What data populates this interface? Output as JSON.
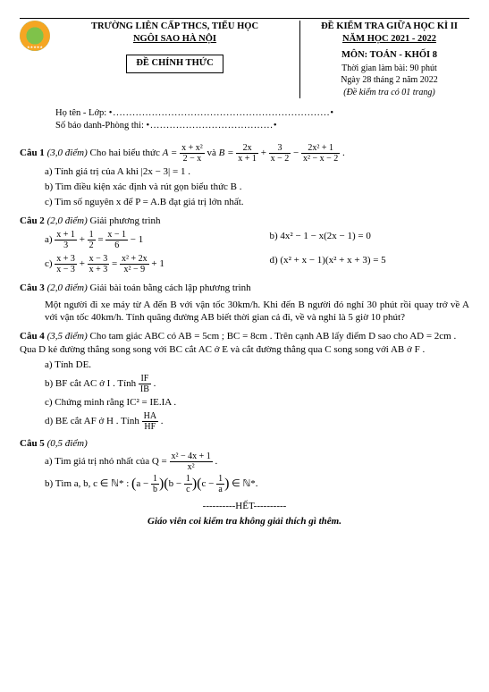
{
  "header": {
    "school_line1": "TRƯỜNG LIÊN CẤP THCS, TIỂU HỌC",
    "school_line2": "NGÔI SAO HÀ NỘI",
    "official": "ĐỀ CHÍNH THỨC",
    "exam_title": "ĐỀ KIỂM TRA GIỮA HỌC KÌ II",
    "year": "NĂM HỌC 2021 - 2022",
    "subject": "MÔN: TOÁN - KHỐI 8",
    "duration": "Thời gian làm bài: 90 phút",
    "date": "Ngày 28 tháng 2 năm 2022",
    "pages": "(Đề kiểm tra có 01 trang)"
  },
  "info": {
    "name_label": "Họ tên - Lớp:",
    "sbd_label": "Số báo danh-Phòng thi:"
  },
  "q1": {
    "head": "Câu 1",
    "pts": "(3,0 điểm)",
    "text_a": " Cho hai biểu thức ",
    "text_b": " và ",
    "A_lhs": "A =",
    "A_num": "x + x²",
    "A_den": "2 − x",
    "B_lhs": "B =",
    "B1_num": "2x",
    "B1_den": "x + 1",
    "B2_num": "3",
    "B2_den": "x − 2",
    "B3_num": "2x² + 1",
    "B3_den": "x² − x − 2",
    "plus": " + ",
    "minus": " − ",
    "period": " .",
    "a": "a) Tính giá trị của  A  khi |2x − 3| = 1 .",
    "b": "b) Tìm điều kiện xác định và rút gọn biểu thức  B .",
    "c": "c) Tìm số nguyên  x  để  P = A.B  đạt giá trị lớn nhất."
  },
  "q2": {
    "head": "Câu 2",
    "pts": "(2,0 điểm)",
    "text": " Giải phương trình",
    "a_lhs_f1_n": "x + 1",
    "a_lhs_f1_d": "3",
    "a_lhs_f2_n": "1",
    "a_lhs_f2_d": "2",
    "a_rhs_f_n": "x − 1",
    "a_rhs_f_d": "6",
    "a_tail": " − 1",
    "b": "b) 4x² − 1 − x(2x − 1) = 0",
    "c_f1_n": "x + 3",
    "c_f1_d": "x − 3",
    "c_f2_n": "x − 3",
    "c_f2_d": "x + 3",
    "c_f3_n": "x² + 2x",
    "c_f3_d": "x² − 9",
    "c_tail": " + 1",
    "d": "d) (x² + x − 1)(x² + x + 3) = 5"
  },
  "q3": {
    "head": "Câu 3",
    "pts": "(2,0 điểm)",
    "text": " Giải bài toán bằng cách lập phương trình",
    "para": "Một người đi xe máy từ A đến B với vận tốc 30km/h. Khi đến B người đó nghỉ 30 phút rồi quay trở về A với vận tốc 40km/h. Tính quãng đường AB biết thời gian cả đi, về và nghỉ là 5 giờ 10 phút?"
  },
  "q4": {
    "head": "Câu 4",
    "pts": "(3,5 điểm)",
    "text": " Cho tam giác  ABC  có  AB = 5cm ;  BC = 8cm . Trên cạnh  AB  lấy điểm D  sao cho AD = 2cm . Qua  D  kẻ đường thẳng song song với  BC  cắt  AC  ở  E  và cắt đường thẳng qua  C song song với  AB  ở  F .",
    "a": "a) Tính  DE.",
    "b_pre": "b)  BF  cắt  AC  ở  I . Tính ",
    "b_fn": "IF",
    "b_fd": "IB",
    "c": "c) Chứng minh rằng  IC² = IE.IA .",
    "d_pre": "d)  BE  cắt  AF  ở  H . Tính ",
    "d_fn": "HA",
    "d_fd": "HF"
  },
  "q5": {
    "head": "Câu 5",
    "pts": "(0,5 điểm)",
    "a_pre": "a) Tìm giá trị nhỏ nhất của Q = ",
    "a_fn": "x² − 4x + 1",
    "a_fd": "x²",
    "b": "b) Tìm  a, b, c ∈ ℕ* : ",
    "b_expr_open": "(",
    "b_expr_close": ")",
    "b_p1_a": "a − ",
    "b_p1_fn": "1",
    "b_p1_fd": "b",
    "b_p2_a": "b − ",
    "b_p2_fn": "1",
    "b_p2_fd": "c",
    "b_p3_a": "c − ",
    "b_p3_fn": "1",
    "b_p3_fd": "a",
    "b_tail": " ∈ ℕ*."
  },
  "end": "----------HẾT----------",
  "footer": "Giáo viên coi kiểm tra không giải thích gì thêm."
}
